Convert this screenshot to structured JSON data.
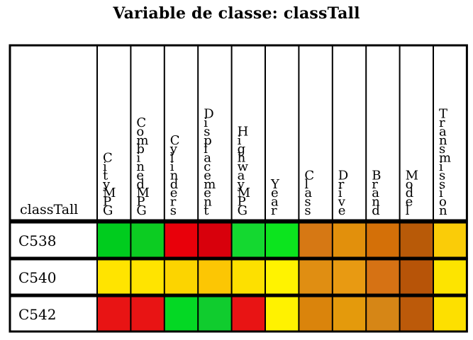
{
  "title": "Variable de classe: classTall",
  "chart_data": {
    "type": "heatmap",
    "corner_label": "classTall",
    "columns": [
      "CityMPG",
      "CombinedMPG",
      "Cylinders",
      "Displacement",
      "HighwayMPG",
      "Year",
      "Class",
      "Drive",
      "Brand",
      "Model",
      "Transmission"
    ],
    "rows": [
      {
        "label": "C538",
        "colors": [
          "#00cc1e",
          "#0ccc22",
          "#e8000a",
          "#d8000c",
          "#14d830",
          "#0ce41e",
          "#d67814",
          "#e2900c",
          "#d47008",
          "#b85a08",
          "#facc08"
        ]
      },
      {
        "label": "C540",
        "colors": [
          "#ffe400",
          "#ffe400",
          "#fcd400",
          "#fcc604",
          "#fde000",
          "#fff300",
          "#e08e12",
          "#e89a12",
          "#d67214",
          "#b75408",
          "#fde400"
        ]
      },
      {
        "label": "C542",
        "colors": [
          "#e81414",
          "#e81414",
          "#04d824",
          "#10cc2e",
          "#e81414",
          "#fff200",
          "#da840c",
          "#e49a0c",
          "#d68616",
          "#bc5a0a",
          "#fde000"
        ]
      }
    ]
  }
}
